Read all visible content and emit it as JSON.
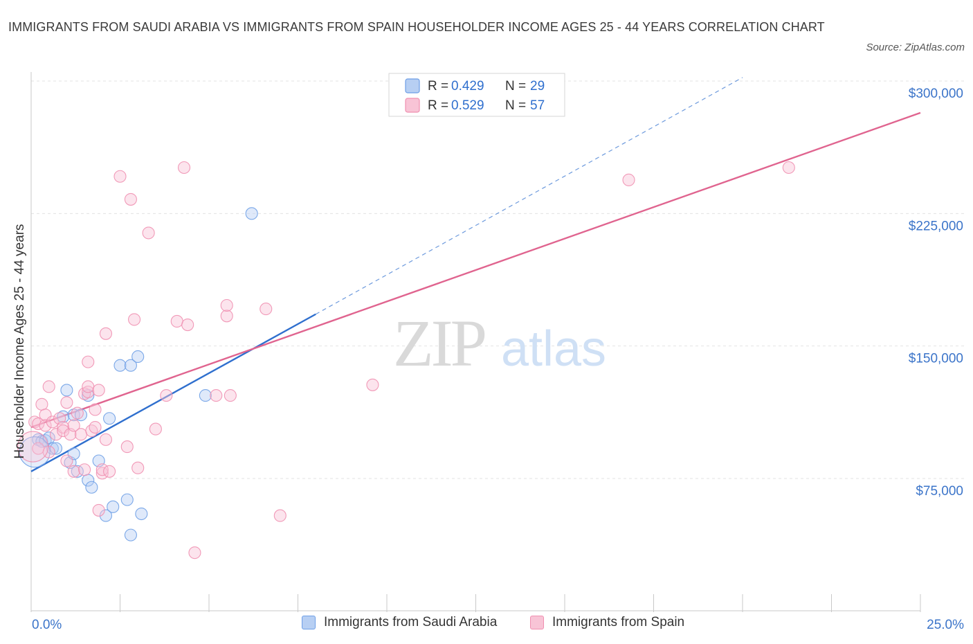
{
  "chart_data": {
    "type": "scatter",
    "title": "IMMIGRANTS FROM SAUDI ARABIA VS IMMIGRANTS FROM SPAIN HOUSEHOLDER INCOME AGES 25 - 44 YEARS CORRELATION CHART",
    "source": "Source: ZipAtlas.com",
    "xlabel": "",
    "ylabel": "Householder Income Ages 25 - 44 years",
    "xlim": [
      0,
      25
    ],
    "ylim": [
      0,
      300000
    ],
    "x_tick_labels": [
      "0.0%",
      "25.0%"
    ],
    "y_ticks": [
      75000,
      150000,
      225000,
      300000
    ],
    "y_tick_labels": [
      "$75,000",
      "$150,000",
      "$225,000",
      "$300,000"
    ],
    "watermark": {
      "zip": "ZIP",
      "atlas": "atlas"
    },
    "legend": {
      "r_label": "R =",
      "n_label": "N =",
      "entries": [
        {
          "r": "0.429",
          "n": "29"
        },
        {
          "r": "0.529",
          "n": "57"
        }
      ]
    },
    "series": [
      {
        "name": "Immigrants from Saudi Arabia",
        "color": "#6d9ee6",
        "fill": "#b7cff3",
        "trend_color": "#2f6fce",
        "trend_solid": [
          [
            0,
            79000
          ],
          [
            8.0,
            168000
          ]
        ],
        "trend_dashed": [
          [
            8.0,
            168000
          ],
          [
            20.0,
            302000
          ]
        ],
        "points": [
          [
            0.2,
            97000
          ],
          [
            0.3,
            96000
          ],
          [
            0.4,
            96500
          ],
          [
            0.5,
            98000
          ],
          [
            0.6,
            92000
          ],
          [
            0.7,
            92000
          ],
          [
            0.9,
            110000
          ],
          [
            1.0,
            125000
          ],
          [
            1.1,
            84000
          ],
          [
            1.2,
            111000
          ],
          [
            1.2,
            89000
          ],
          [
            1.3,
            79000
          ],
          [
            1.4,
            111000
          ],
          [
            1.6,
            122000
          ],
          [
            1.6,
            74000
          ],
          [
            1.7,
            70000
          ],
          [
            1.9,
            85000
          ],
          [
            2.1,
            54000
          ],
          [
            2.2,
            109000
          ],
          [
            2.3,
            59000
          ],
          [
            2.5,
            139000
          ],
          [
            2.7,
            63000
          ],
          [
            2.8,
            139000
          ],
          [
            2.8,
            43000
          ],
          [
            3.0,
            144000
          ],
          [
            3.1,
            55000
          ],
          [
            4.9,
            122000
          ],
          [
            6.2,
            225000
          ],
          [
            0.1,
            90000
          ]
        ]
      },
      {
        "name": "Immigrants from Spain",
        "color": "#f08fb0",
        "fill": "#f8c4d6",
        "trend_color": "#e0648f",
        "trend_solid": [
          [
            0,
            104000
          ],
          [
            25.0,
            282000
          ]
        ],
        "points": [
          [
            0.1,
            107000
          ],
          [
            0.2,
            92000
          ],
          [
            0.2,
            106000
          ],
          [
            0.3,
            117000
          ],
          [
            0.4,
            111000
          ],
          [
            0.4,
            105000
          ],
          [
            0.5,
            127000
          ],
          [
            0.5,
            90000
          ],
          [
            0.6,
            107000
          ],
          [
            0.7,
            100000
          ],
          [
            0.8,
            109000
          ],
          [
            0.9,
            104000
          ],
          [
            0.9,
            102000
          ],
          [
            1.0,
            85000
          ],
          [
            1.0,
            118000
          ],
          [
            1.1,
            100000
          ],
          [
            1.2,
            105000
          ],
          [
            1.2,
            79000
          ],
          [
            1.3,
            112000
          ],
          [
            1.4,
            100000
          ],
          [
            1.5,
            123000
          ],
          [
            1.5,
            80000
          ],
          [
            1.6,
            141000
          ],
          [
            1.6,
            124000
          ],
          [
            1.6,
            127000
          ],
          [
            1.7,
            102000
          ],
          [
            1.8,
            114000
          ],
          [
            1.8,
            104000
          ],
          [
            1.9,
            125000
          ],
          [
            1.9,
            57000
          ],
          [
            2.0,
            78000
          ],
          [
            2.0,
            80000
          ],
          [
            2.1,
            97000
          ],
          [
            2.1,
            157000
          ],
          [
            2.2,
            79000
          ],
          [
            2.5,
            246000
          ],
          [
            2.7,
            93000
          ],
          [
            2.8,
            233000
          ],
          [
            2.9,
            165000
          ],
          [
            3.0,
            81000
          ],
          [
            3.3,
            214000
          ],
          [
            3.5,
            103000
          ],
          [
            3.8,
            122000
          ],
          [
            4.1,
            164000
          ],
          [
            4.3,
            251000
          ],
          [
            4.4,
            162000
          ],
          [
            4.6,
            33000
          ],
          [
            5.2,
            122000
          ],
          [
            5.5,
            167000
          ],
          [
            5.5,
            173000
          ],
          [
            5.6,
            122000
          ],
          [
            6.6,
            171000
          ],
          [
            7.0,
            54000
          ],
          [
            9.6,
            128000
          ],
          [
            16.8,
            244000
          ],
          [
            21.3,
            251000
          ],
          [
            0.05,
            93000
          ]
        ]
      }
    ]
  }
}
